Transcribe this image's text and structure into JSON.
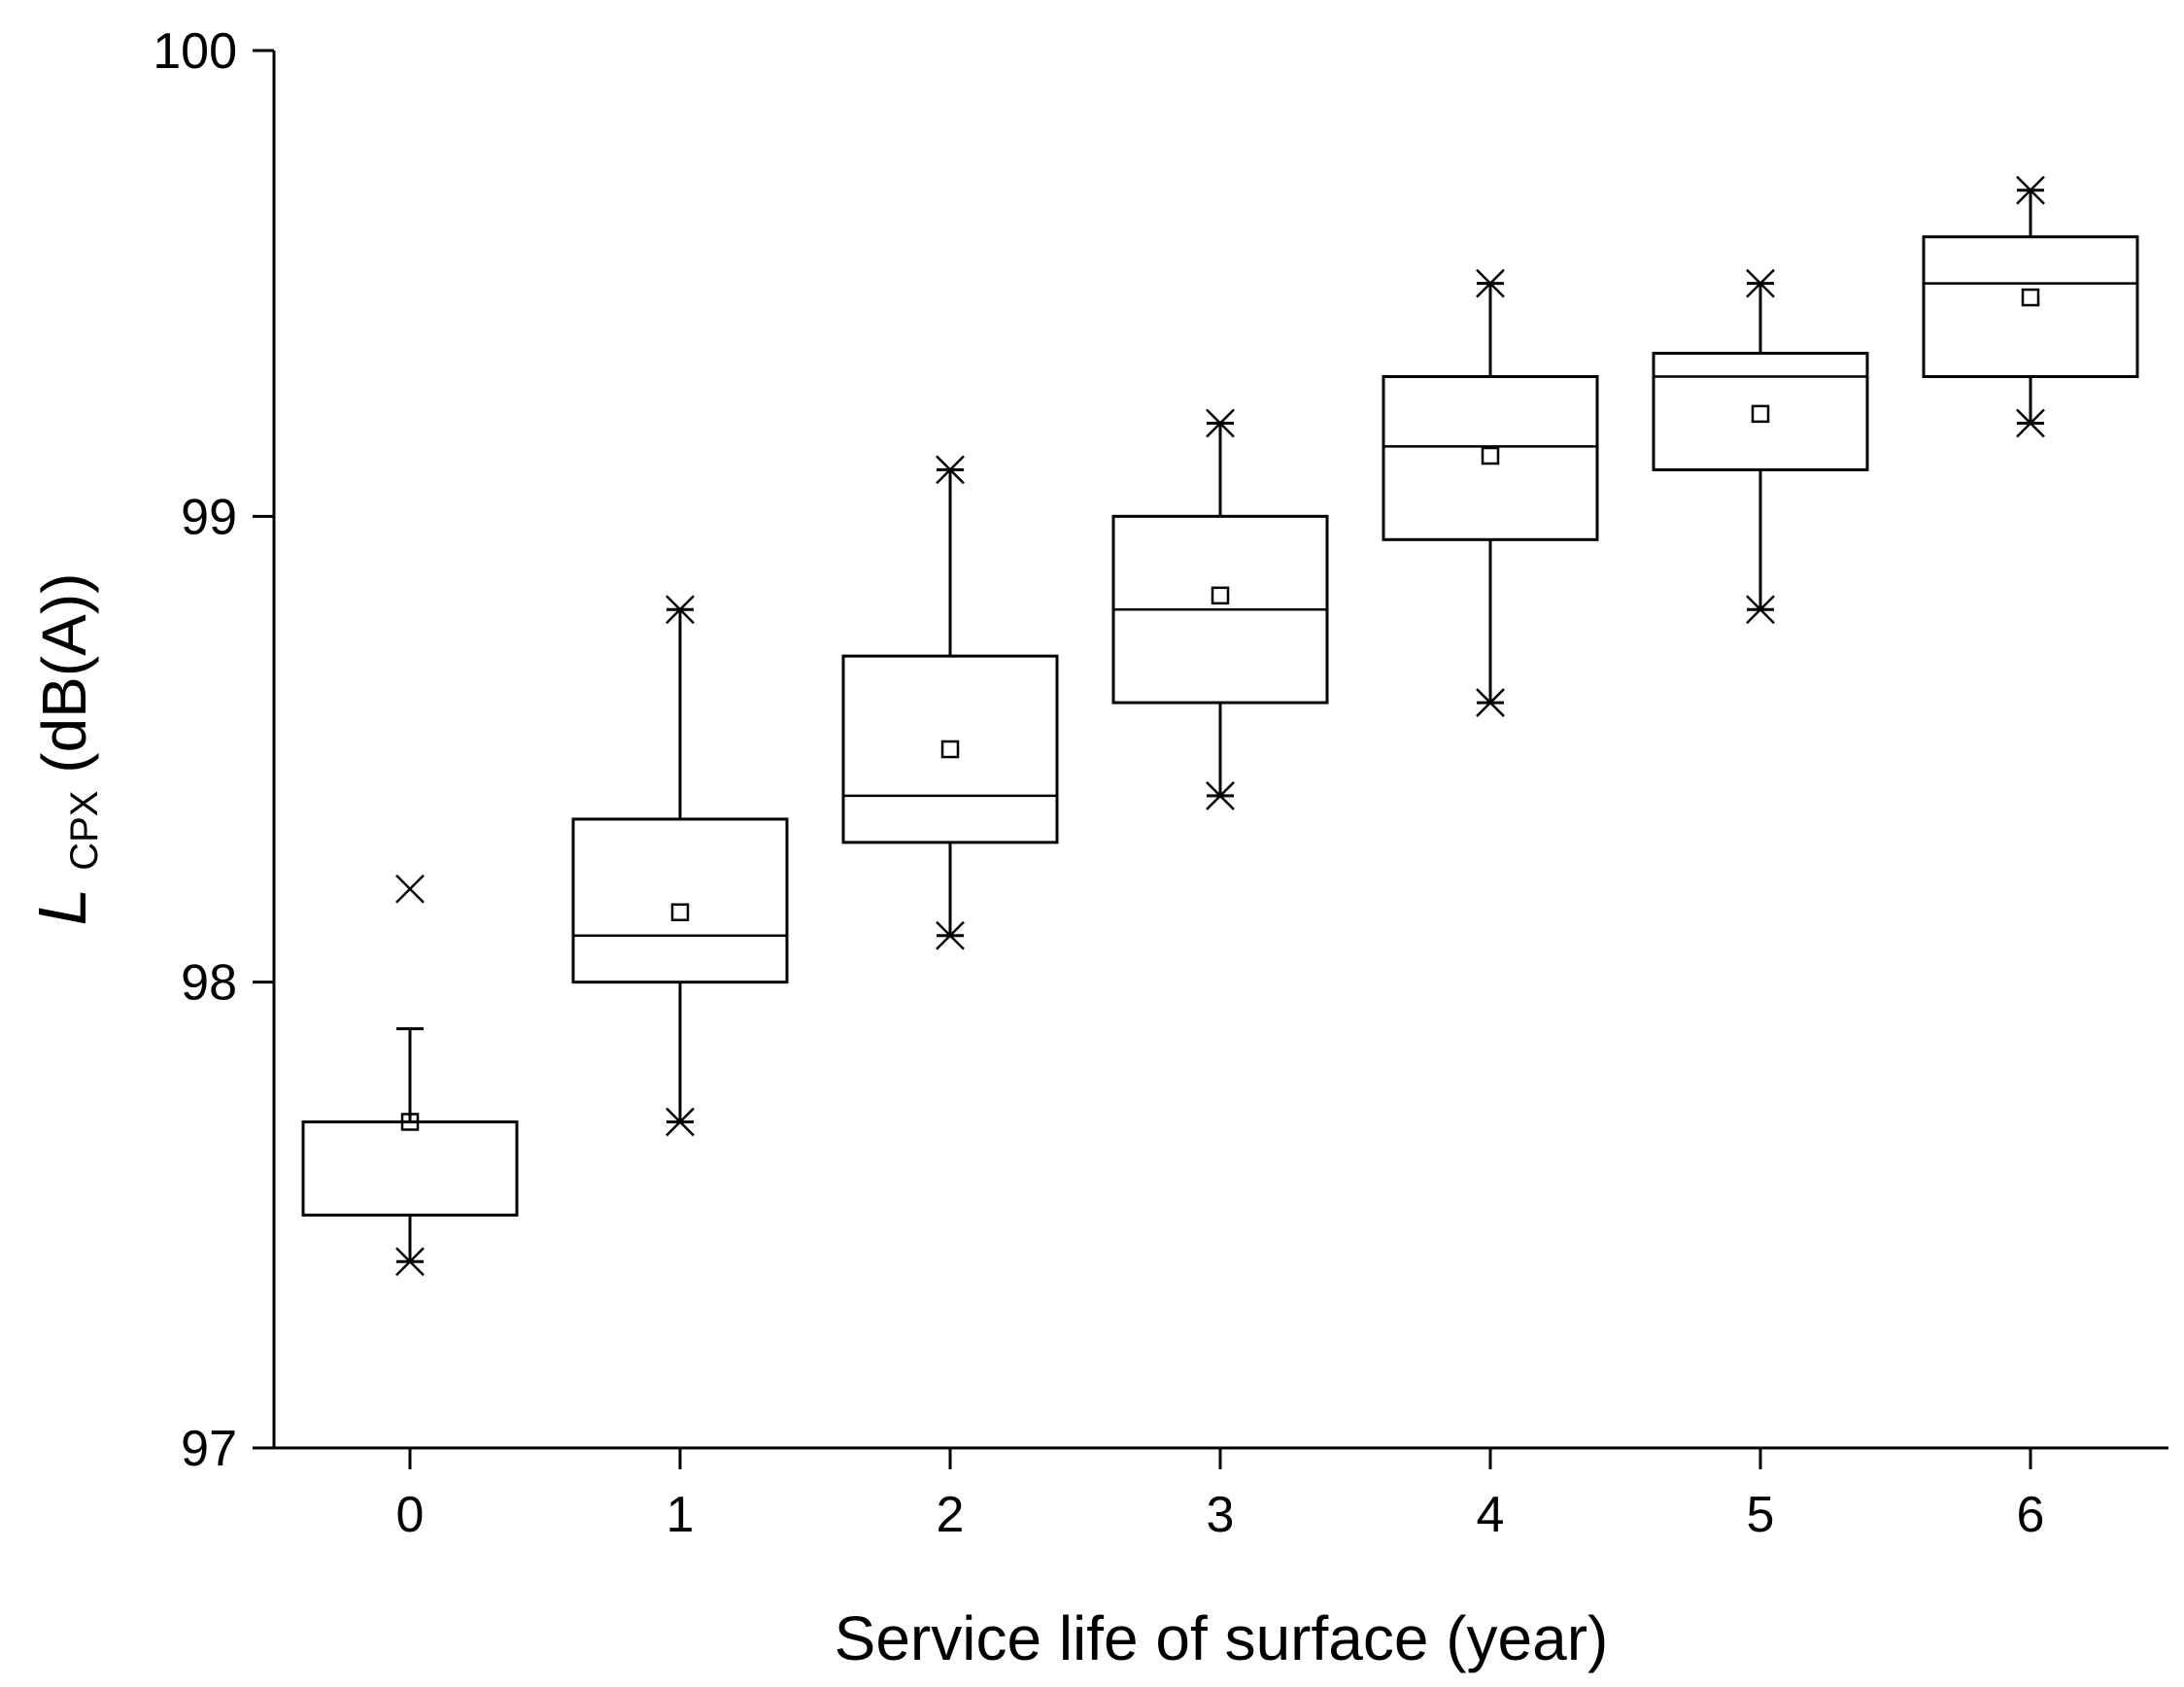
{
  "chart_data": {
    "type": "box",
    "xlabel": "Service life of surface (year)",
    "ylabel": {
      "symbol": "L",
      "subscript": "CPX",
      "unit": " (dB(A))"
    },
    "categories": [
      "0",
      "1",
      "2",
      "3",
      "4",
      "5",
      "6"
    ],
    "ylim": [
      97,
      100
    ],
    "yticks": [
      "97",
      "98",
      "99",
      "100"
    ],
    "boxes": [
      {
        "year": "0",
        "q1": 97.5,
        "median": 97.5,
        "q3": 97.7,
        "whisker_low": 97.4,
        "whisker_high": 97.9,
        "mean": 97.7,
        "extreme_low": 97.4,
        "extreme_high": 98.2
      },
      {
        "year": "1",
        "q1": 98.0,
        "median": 98.1,
        "q3": 98.35,
        "whisker_low": 97.7,
        "whisker_high": 98.8,
        "mean": 98.15,
        "extreme_low": 97.7,
        "extreme_high": 98.8
      },
      {
        "year": "2",
        "q1": 98.3,
        "median": 98.4,
        "q3": 98.7,
        "whisker_low": 98.1,
        "whisker_high": 99.1,
        "mean": 98.5,
        "extreme_low": 98.1,
        "extreme_high": 99.1
      },
      {
        "year": "3",
        "q1": 98.6,
        "median": 98.8,
        "q3": 99.0,
        "whisker_low": 98.4,
        "whisker_high": 99.2,
        "mean": 98.83,
        "extreme_low": 98.4,
        "extreme_high": 99.2
      },
      {
        "year": "4",
        "q1": 98.95,
        "median": 99.15,
        "q3": 99.3,
        "whisker_low": 98.6,
        "whisker_high": 99.5,
        "mean": 99.13,
        "extreme_low": 98.6,
        "extreme_high": 99.5
      },
      {
        "year": "5",
        "q1": 99.1,
        "median": 99.3,
        "q3": 99.35,
        "whisker_low": 98.8,
        "whisker_high": 99.5,
        "mean": 99.22,
        "extreme_low": 98.8,
        "extreme_high": 99.5
      },
      {
        "year": "6",
        "q1": 99.3,
        "median": 99.5,
        "q3": 99.6,
        "whisker_low": 99.2,
        "whisker_high": 99.7,
        "mean": 99.47,
        "extreme_low": 99.2,
        "extreme_high": 99.7
      }
    ]
  }
}
